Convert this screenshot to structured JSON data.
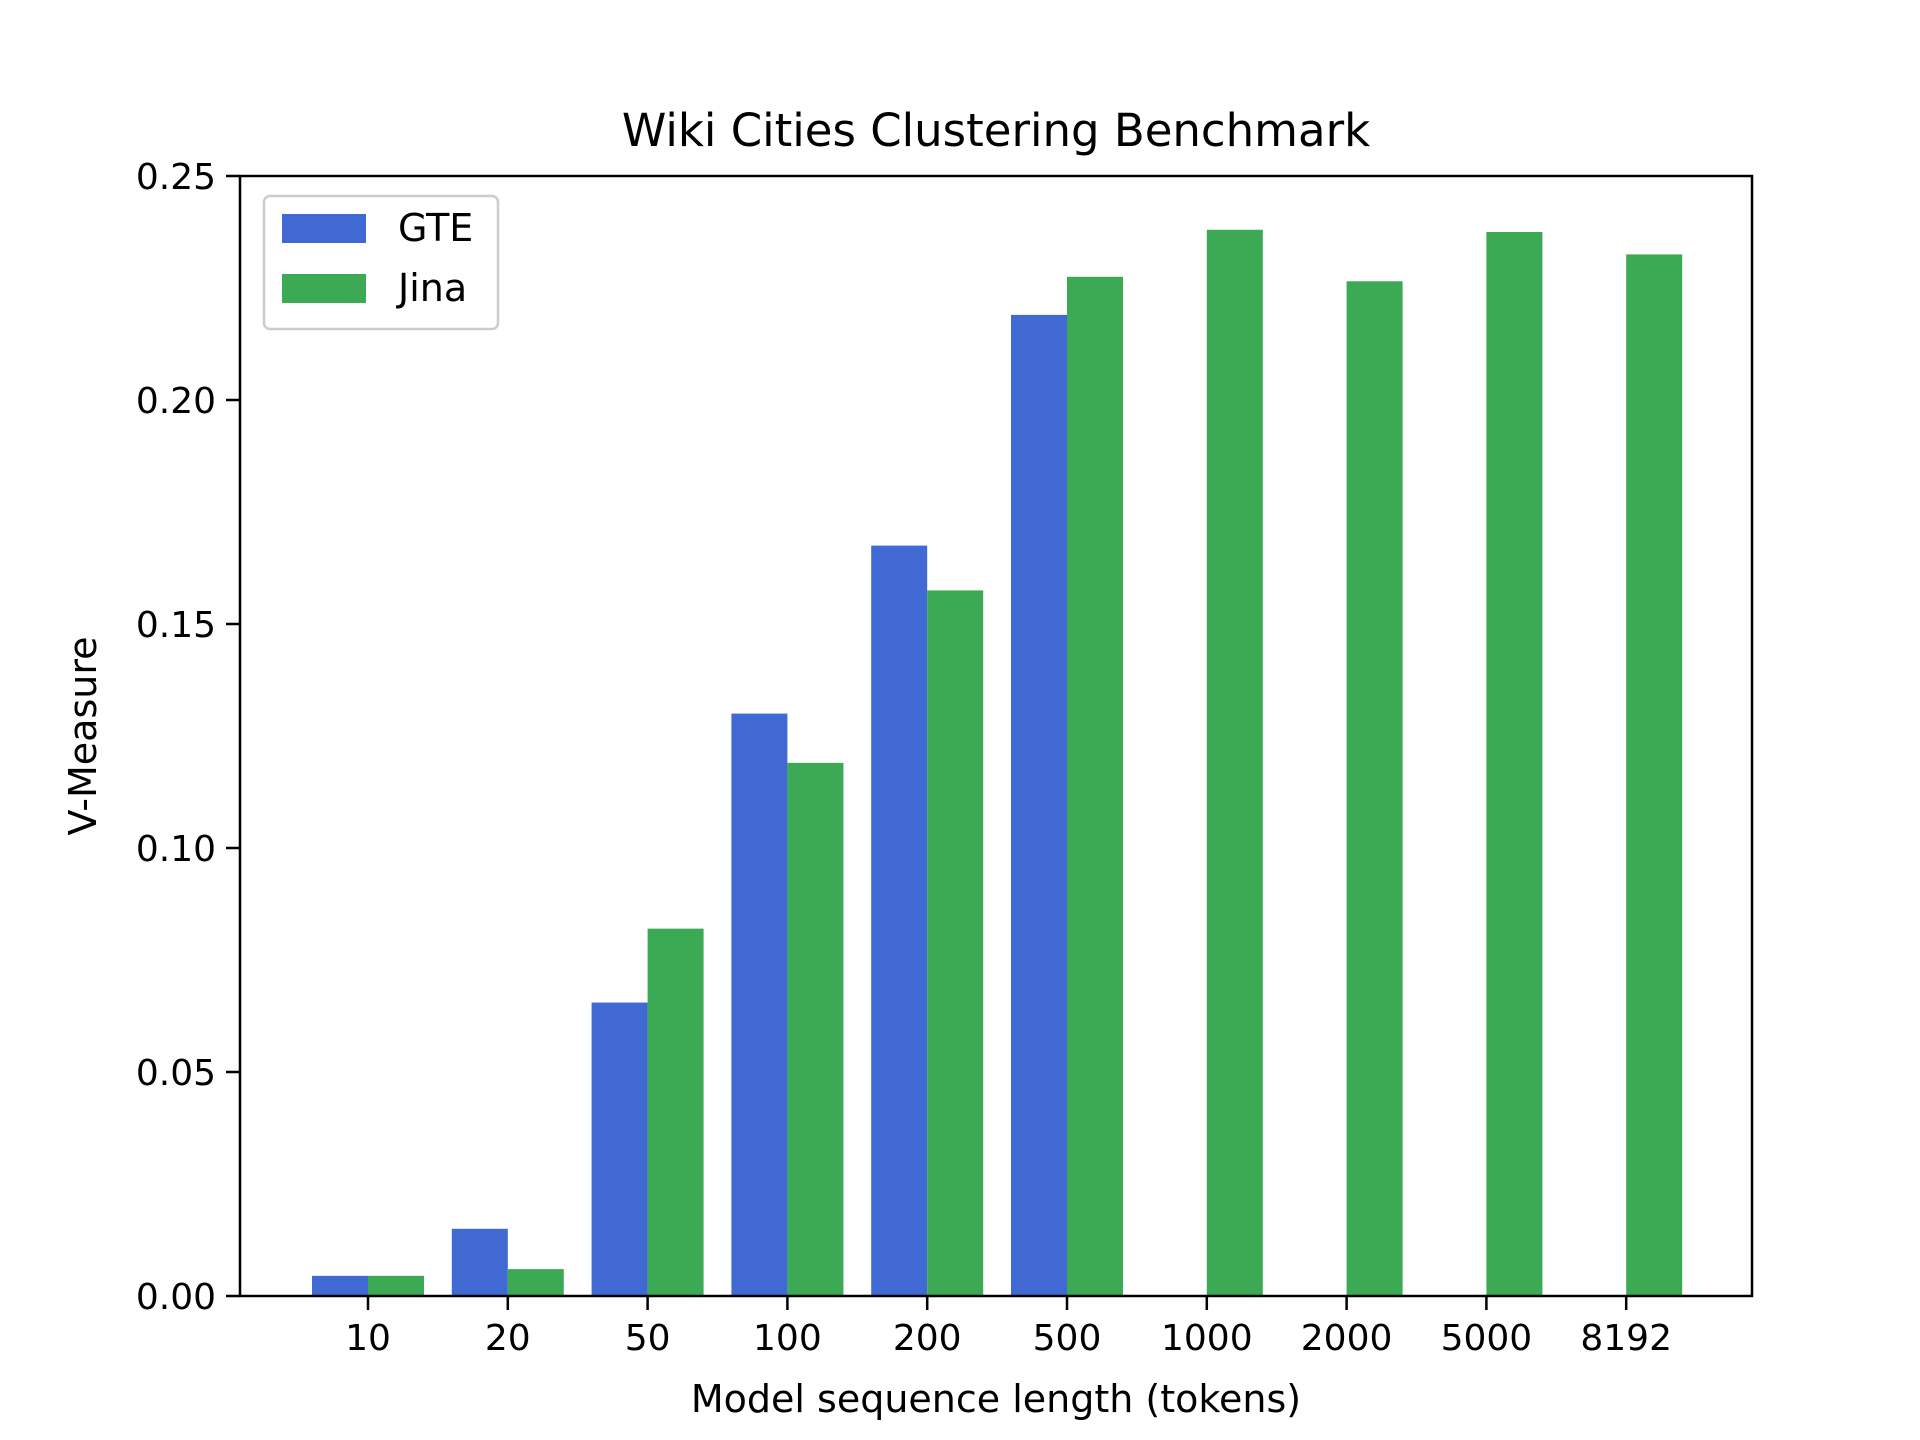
{
  "chart_data": {
    "type": "bar",
    "title": "Wiki Cities Clustering Benchmark",
    "xlabel": "Model sequence length (tokens)",
    "ylabel": "V-Measure",
    "categories": [
      "10",
      "20",
      "50",
      "100",
      "200",
      "500",
      "1000",
      "2000",
      "5000",
      "8192"
    ],
    "ylim": [
      0,
      0.25
    ],
    "yticks": [
      0.0,
      0.05,
      0.1,
      0.15,
      0.2,
      0.25
    ],
    "ytick_labels": [
      "0.00",
      "0.05",
      "0.10",
      "0.15",
      "0.20",
      "0.25"
    ],
    "series": [
      {
        "name": "GTE",
        "color": "#4169d4",
        "values": [
          0.0045,
          0.015,
          0.0655,
          0.13,
          0.1675,
          0.219,
          null,
          null,
          null,
          null
        ]
      },
      {
        "name": "Jina",
        "color": "#3caa54",
        "values": [
          0.0045,
          0.006,
          0.082,
          0.119,
          0.1575,
          0.2275,
          0.238,
          0.2265,
          0.2375,
          0.2325
        ]
      }
    ],
    "legend_position": "top-left",
    "grid": false
  }
}
